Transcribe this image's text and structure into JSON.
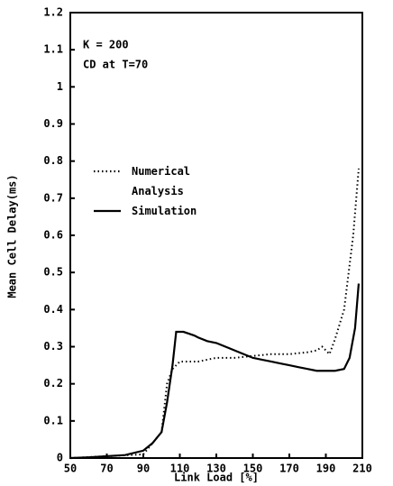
{
  "chart_data": {
    "type": "line",
    "x_label": "Link Load [%]",
    "y_label": "Mean Cell Delay(ms)",
    "annotations": [
      "K = 200",
      "CD at T=70"
    ],
    "xlim": [
      50,
      210
    ],
    "xticks": [
      50,
      70,
      90,
      110,
      130,
      150,
      170,
      190,
      210
    ],
    "ylim": [
      0,
      1.2
    ],
    "yticks": [
      0,
      0.1,
      0.2,
      0.3,
      0.4,
      0.5,
      0.6,
      0.7,
      0.8,
      0.9,
      1,
      1.1,
      1.2
    ],
    "legend": "upper left",
    "series": [
      {
        "name": "Numerical Analysis",
        "color": "#000000",
        "style": "dotted",
        "x": [
          50,
          70,
          90,
          95,
          100,
          103,
          106,
          110,
          115,
          120,
          125,
          130,
          140,
          150,
          160,
          170,
          180,
          185,
          188,
          192,
          195,
          200,
          205,
          208
        ],
        "values": [
          0,
          0.005,
          0.01,
          0.04,
          0.07,
          0.2,
          0.24,
          0.26,
          0.26,
          0.26,
          0.265,
          0.27,
          0.27,
          0.275,
          0.28,
          0.28,
          0.285,
          0.29,
          0.3,
          0.28,
          0.32,
          0.4,
          0.6,
          0.78
        ]
      },
      {
        "name": "Simulation",
        "color": "#000000",
        "style": "solid",
        "x": [
          50,
          60,
          70,
          80,
          90,
          95,
          100,
          103,
          106,
          108,
          112,
          115,
          118,
          120,
          125,
          130,
          135,
          140,
          145,
          150,
          155,
          160,
          165,
          170,
          175,
          180,
          185,
          190,
          195,
          200,
          203,
          206,
          208
        ],
        "values": [
          0,
          0.002,
          0.005,
          0.008,
          0.02,
          0.04,
          0.07,
          0.15,
          0.25,
          0.34,
          0.34,
          0.335,
          0.33,
          0.325,
          0.315,
          0.31,
          0.3,
          0.29,
          0.28,
          0.27,
          0.265,
          0.26,
          0.255,
          0.25,
          0.245,
          0.24,
          0.235,
          0.235,
          0.235,
          0.24,
          0.27,
          0.35,
          0.47
        ]
      }
    ]
  }
}
